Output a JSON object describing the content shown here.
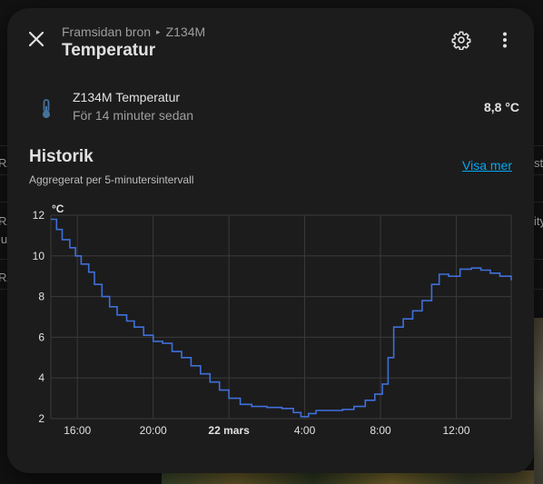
{
  "dialog": {
    "breadcrumb": [
      "Framsidan bron",
      "Z134M"
    ],
    "title": "Temperatur",
    "close_icon": "close-icon",
    "settings_icon": "gear-icon",
    "more_icon": "more-vert-icon"
  },
  "entity": {
    "icon": "thermometer-icon",
    "name": "Z134M Temperatur",
    "last_changed": "För 14 minuter sedan",
    "state": "8,8 °C"
  },
  "history": {
    "title": "Historik",
    "subtitle": "Aggregerat per 5-minutersintervall",
    "show_more": "Visa mer"
  },
  "colors": {
    "line": "#3f6fd9",
    "accent_link": "#03a9f4",
    "dialog_bg": "#1c1c1c"
  },
  "chart_data": {
    "type": "line",
    "unit": "°C",
    "ylim": [
      2,
      12
    ],
    "y_ticks": [
      "2",
      "4",
      "6",
      "8",
      "10",
      "12"
    ],
    "x_ticks": [
      "16:00",
      "20:00",
      "22 mars",
      "4:00",
      "8:00",
      "12:00"
    ],
    "x_tick_hours": [
      16,
      20,
      24,
      28,
      32,
      36
    ],
    "xlim_hours": [
      14.6,
      38.9
    ],
    "grid": true,
    "series": [
      {
        "points": [
          [
            14.6,
            11.8
          ],
          [
            14.9,
            11.3
          ],
          [
            15.2,
            10.8
          ],
          [
            15.6,
            10.4
          ],
          [
            15.9,
            10.0
          ],
          [
            16.2,
            9.6
          ],
          [
            16.6,
            9.2
          ],
          [
            16.9,
            8.6
          ],
          [
            17.3,
            8.0
          ],
          [
            17.7,
            7.5
          ],
          [
            18.1,
            7.1
          ],
          [
            18.6,
            6.8
          ],
          [
            19.0,
            6.5
          ],
          [
            19.5,
            6.1
          ],
          [
            20.0,
            5.8
          ],
          [
            20.5,
            5.7
          ],
          [
            21.0,
            5.3
          ],
          [
            21.5,
            5.0
          ],
          [
            22.0,
            4.6
          ],
          [
            22.5,
            4.2
          ],
          [
            23.0,
            3.8
          ],
          [
            23.5,
            3.4
          ],
          [
            24.0,
            3.0
          ],
          [
            24.6,
            2.7
          ],
          [
            25.2,
            2.6
          ],
          [
            26.0,
            2.55
          ],
          [
            26.8,
            2.5
          ],
          [
            27.4,
            2.3
          ],
          [
            27.8,
            2.1
          ],
          [
            28.2,
            2.25
          ],
          [
            28.6,
            2.4
          ],
          [
            29.2,
            2.4
          ],
          [
            30.0,
            2.45
          ],
          [
            30.6,
            2.6
          ],
          [
            31.2,
            2.9
          ],
          [
            31.7,
            3.2
          ],
          [
            32.1,
            3.7
          ],
          [
            32.4,
            5.0
          ],
          [
            32.7,
            6.5
          ],
          [
            33.2,
            6.9
          ],
          [
            33.7,
            7.3
          ],
          [
            34.2,
            7.8
          ],
          [
            34.7,
            8.6
          ],
          [
            35.1,
            9.1
          ],
          [
            35.6,
            9.0
          ],
          [
            36.2,
            9.35
          ],
          [
            36.8,
            9.4
          ],
          [
            37.3,
            9.3
          ],
          [
            37.8,
            9.15
          ],
          [
            38.3,
            9.0
          ],
          [
            38.9,
            8.8
          ]
        ]
      }
    ]
  },
  "background": {
    "left_fragments": [
      "RA",
      "RA",
      "ius",
      "RA"
    ],
    "right_fragments": [
      "sta",
      "ity"
    ]
  }
}
